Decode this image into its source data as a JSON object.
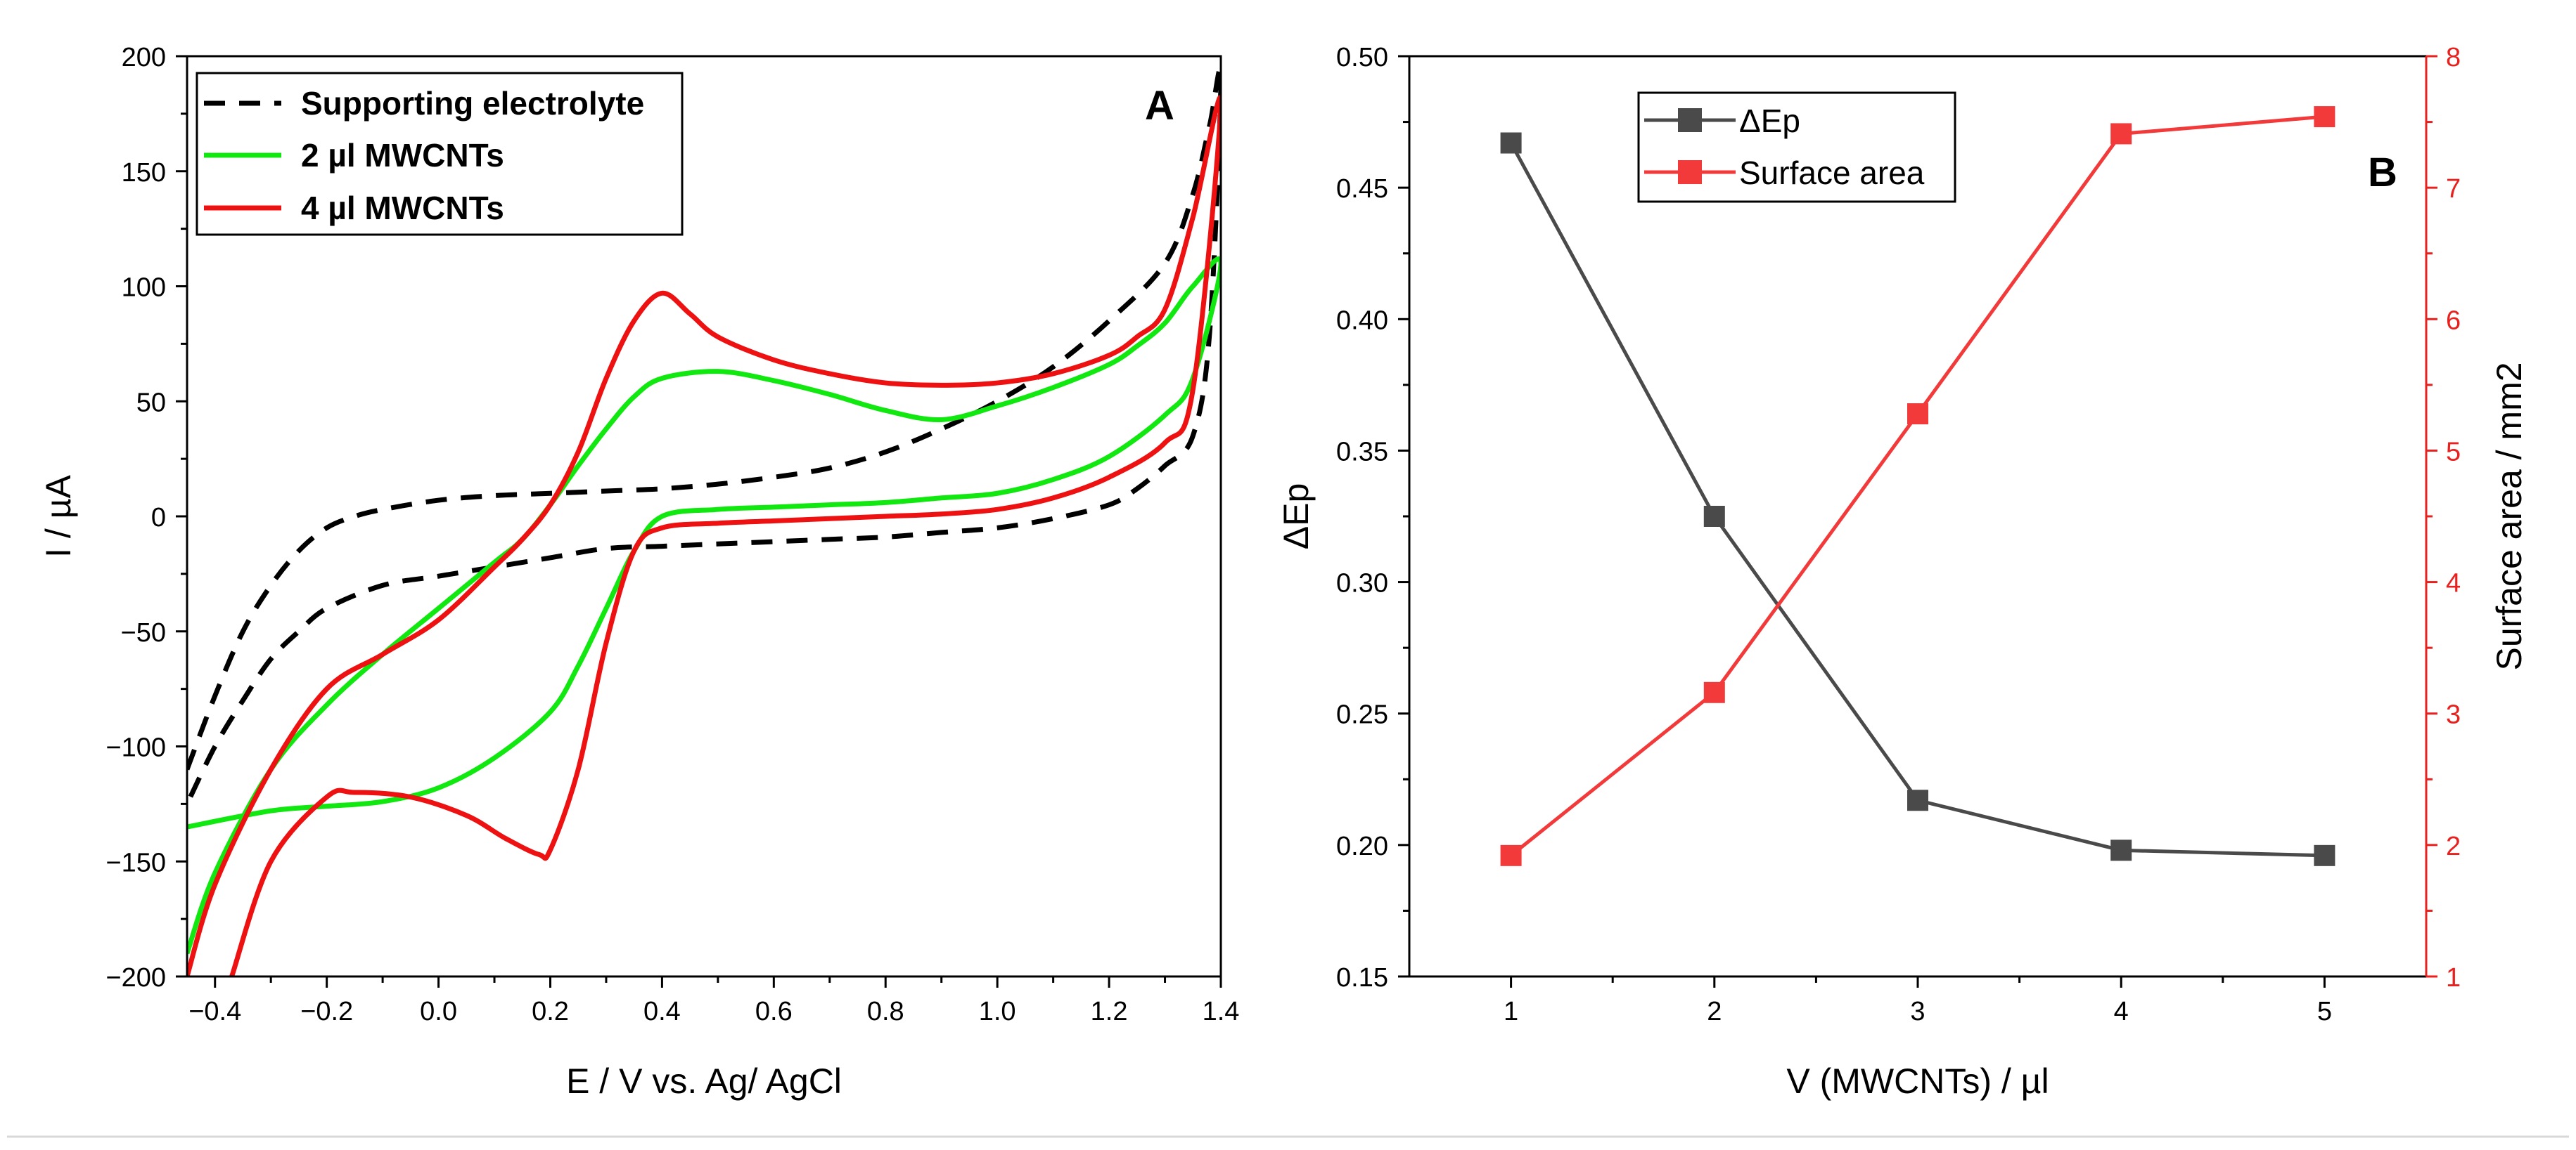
{
  "chart_data": [
    {
      "panel": "A",
      "type": "line",
      "title": "",
      "xlabel": "E / V vs. Ag/ AgCl",
      "ylabel": "I / µA",
      "xlim": [
        -0.45,
        1.4
      ],
      "ylim": [
        -200,
        200
      ],
      "xticks": [
        -0.4,
        -0.2,
        0.0,
        0.2,
        0.4,
        0.6,
        0.8,
        1.0,
        1.2,
        1.4
      ],
      "xtick_labels": [
        "-0.4",
        "-0.2",
        "0.0",
        "0.2",
        "0.4",
        "0.6",
        "0.8",
        "1.0",
        "1.2",
        "1.4"
      ],
      "yticks": [
        -200,
        -150,
        -100,
        -50,
        0,
        50,
        100,
        150,
        200
      ],
      "ytick_labels": [
        "-200",
        "-150",
        "-100",
        "-50",
        "0",
        "50",
        "100",
        "150",
        "200"
      ],
      "grid": false,
      "legend_position": "top-left",
      "series": [
        {
          "name": "Supporting electrolyte",
          "color": "#000000",
          "style": "dashed",
          "x": [
            -0.45,
            -0.4,
            -0.35,
            -0.3,
            -0.25,
            -0.2,
            -0.15,
            -0.1,
            0.0,
            0.1,
            0.2,
            0.3,
            0.4,
            0.5,
            0.6,
            0.7,
            0.8,
            0.9,
            1.0,
            1.1,
            1.2,
            1.3,
            1.35,
            1.38,
            1.4,
            1.38,
            1.35,
            1.3,
            1.25,
            1.2,
            1.1,
            1.0,
            0.9,
            0.8,
            0.7,
            0.6,
            0.5,
            0.4,
            0.3,
            0.2,
            0.1,
            0.0,
            -0.1,
            -0.2,
            -0.25,
            -0.3,
            -0.35,
            -0.4,
            -0.45
          ],
          "y": [
            -110,
            -78,
            -50,
            -30,
            -15,
            -5,
            0,
            3,
            7,
            9,
            10,
            11,
            12,
            14,
            17,
            21,
            28,
            38,
            50,
            65,
            85,
            110,
            140,
            170,
            190,
            80,
            35,
            22,
            12,
            5,
            -1,
            -5,
            -7,
            -9,
            -10,
            -11,
            -12,
            -13,
            -14,
            -18,
            -22,
            -26,
            -30,
            -40,
            -50,
            -62,
            -80,
            -100,
            -125
          ]
        },
        {
          "name": "2 µl MWCNTs",
          "color": "#10e810",
          "style": "solid",
          "x": [
            -0.45,
            -0.3,
            -0.2,
            -0.1,
            0.0,
            0.1,
            0.2,
            0.25,
            0.3,
            0.35,
            0.4,
            0.5,
            0.6,
            0.7,
            0.8,
            0.9,
            1.0,
            1.1,
            1.2,
            1.3,
            1.35,
            1.4,
            1.35,
            1.3,
            1.25,
            1.2,
            1.1,
            1.0,
            0.9,
            0.8,
            0.7,
            0.6,
            0.5,
            0.4,
            0.35,
            0.3,
            0.25,
            0.2,
            0.15,
            0.1,
            0.0,
            -0.1,
            -0.2,
            -0.3,
            -0.4,
            -0.45
          ],
          "y": [
            -135,
            -128,
            -126,
            -124,
            -118,
            -105,
            -85,
            -65,
            -40,
            -15,
            0,
            3,
            4,
            5,
            6,
            8,
            10,
            16,
            26,
            44,
            60,
            110,
            100,
            84,
            74,
            66,
            56,
            48,
            42,
            46,
            53,
            59,
            63,
            60,
            52,
            38,
            22,
            5,
            -10,
            -20,
            -40,
            -60,
            -82,
            -110,
            -155,
            -190
          ]
        },
        {
          "name": "4 µl MWCNTs",
          "color": "#ee1111",
          "style": "solid",
          "x": [
            -0.37,
            -0.3,
            -0.2,
            -0.15,
            -0.05,
            0.05,
            0.12,
            0.18,
            0.2,
            0.25,
            0.3,
            0.35,
            0.4,
            0.5,
            0.6,
            0.7,
            0.8,
            0.9,
            1.0,
            1.1,
            1.2,
            1.3,
            1.35,
            1.4,
            1.35,
            1.3,
            1.25,
            1.2,
            1.1,
            1.0,
            0.9,
            0.8,
            0.7,
            0.6,
            0.5,
            0.45,
            0.4,
            0.35,
            0.3,
            0.25,
            0.2,
            0.15,
            0.1,
            0.0,
            -0.1,
            -0.2,
            -0.3,
            -0.4,
            -0.45
          ],
          "y": [
            -200,
            -150,
            -122,
            -120,
            -122,
            -130,
            -140,
            -147,
            -145,
            -110,
            -55,
            -15,
            -5,
            -3,
            -2,
            -1,
            0,
            1,
            3,
            8,
            17,
            32,
            55,
            180,
            130,
            90,
            78,
            70,
            62,
            58,
            57,
            58,
            62,
            68,
            78,
            88,
            97,
            85,
            60,
            28,
            5,
            -10,
            -22,
            -45,
            -60,
            -75,
            -110,
            -160,
            -200
          ]
        }
      ],
      "annotation": "A"
    },
    {
      "panel": "B",
      "type": "line",
      "title": "",
      "xlabel": "V (MWCNTs) / µl",
      "ylabel_left": "ΔEp",
      "ylabel_right": "Surface area / mm2",
      "xlim": [
        0.5,
        5.5
      ],
      "ylim_left": [
        0.15,
        0.5
      ],
      "ylim_right": [
        1,
        8
      ],
      "xticks": [
        1,
        2,
        3,
        4,
        5
      ],
      "xtick_labels": [
        "1",
        "2",
        "3",
        "4",
        "5"
      ],
      "yticks_left": [
        0.15,
        0.2,
        0.25,
        0.3,
        0.35,
        0.4,
        0.45,
        0.5
      ],
      "ytick_labels_left": [
        "0.15",
        "0.20",
        "0.25",
        "0.30",
        "0.35",
        "0.40",
        "0.45",
        "0.50"
      ],
      "yticks_right": [
        1,
        2,
        3,
        4,
        5,
        6,
        7,
        8
      ],
      "ytick_labels_right": [
        "1",
        "2",
        "3",
        "4",
        "5",
        "6",
        "7",
        "8"
      ],
      "grid": false,
      "legend_position": "top-center",
      "series": [
        {
          "name": "ΔEp",
          "axis": "left",
          "color": "#4a4a4a",
          "marker": "square",
          "x": [
            1,
            2,
            3,
            4,
            5
          ],
          "values": [
            0.467,
            0.325,
            0.217,
            0.198,
            0.196
          ]
        },
        {
          "name": "Surface area",
          "axis": "right",
          "color": "#f23a3a",
          "marker": "square",
          "x": [
            1,
            2,
            3,
            4,
            5
          ],
          "values": [
            1.92,
            3.16,
            5.28,
            7.41,
            7.54
          ]
        }
      ],
      "annotation": "B"
    }
  ]
}
